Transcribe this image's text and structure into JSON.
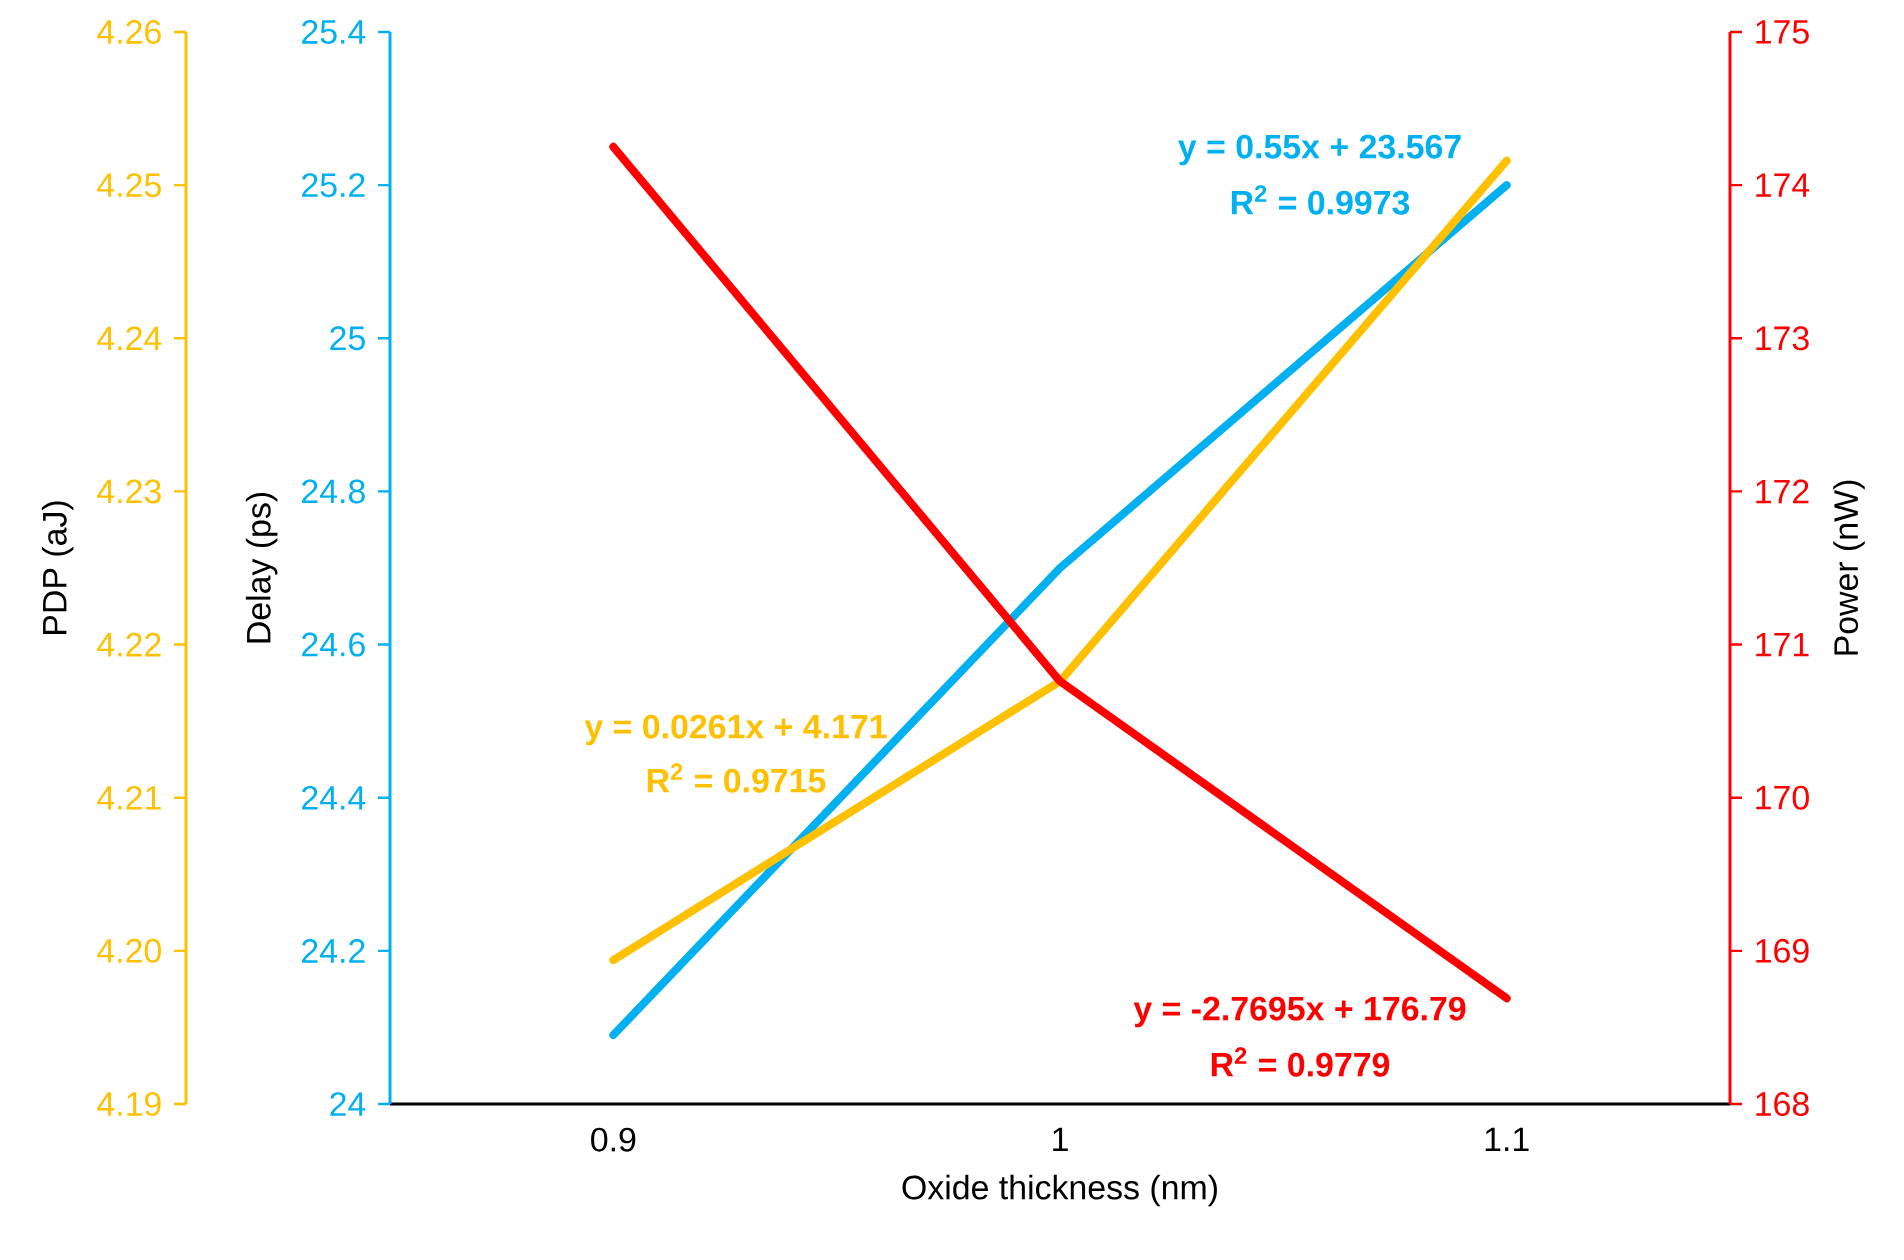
{
  "chart_data": {
    "type": "line",
    "x": [
      0.9,
      1,
      1.1
    ],
    "series": [
      {
        "name": null,
        "axis": "y",
        "color": "#00b0f0",
        "values": [
          24.09,
          24.7,
          25.2
        ]
      },
      {
        "name": null,
        "axis": "y3",
        "color": "#ffc000",
        "values": [
          4.1994,
          4.2176,
          4.2516
        ]
      },
      {
        "name": null,
        "axis": "y2",
        "color": "#ff0000",
        "values": [
          174.25,
          170.76,
          168.69
        ]
      }
    ],
    "xlabel": "Oxide thickness (nm)",
    "ylabel": "Delay (ps)",
    "y2label": "Power (nW)",
    "y3label": "PDP (aJ)",
    "xlim": [
      0.85,
      1.15
    ],
    "xticks": [
      0.9,
      1,
      1.1
    ],
    "ylim": [
      24,
      25.4
    ],
    "yticks": [
      24,
      24.2,
      24.4,
      24.6,
      24.8,
      25,
      25.2,
      25.4
    ],
    "y2lim": [
      168,
      175
    ],
    "y2ticks": [
      168,
      169,
      170,
      171,
      172,
      173,
      174,
      175
    ],
    "y3lim": [
      4.19,
      4.26
    ],
    "y3ticks": [
      4.19,
      {
        "value": 4.2,
        "label": "4.20"
      },
      4.21,
      4.22,
      4.23,
      4.24,
      4.25,
      4.26
    ],
    "annotations": [
      "y = 0.55x + 23.567",
      "R$^{2}$ = 0.9973",
      "y = 0.0261x + 4.171",
      "R$^{2}$ = 0.9715",
      "y = -2.7695x + 176.79",
      "R$^{2}$ = 0.9779"
    ]
  }
}
